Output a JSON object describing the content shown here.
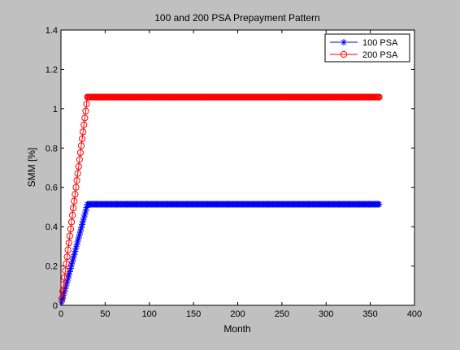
{
  "chart_data": {
    "type": "line",
    "title": "100 and 200 PSA Prepayment Pattern",
    "xlabel": "Month",
    "ylabel": "SMM [%]",
    "xlim": [
      0,
      400
    ],
    "ylim": [
      0,
      1.4
    ],
    "xticks": [
      0,
      50,
      100,
      150,
      200,
      250,
      300,
      350,
      400
    ],
    "yticks": [
      0,
      0.2,
      0.4,
      0.6,
      0.8,
      1,
      1.2,
      1.4
    ],
    "xtick_labels": [
      "0",
      "50",
      "100",
      "150",
      "200",
      "250",
      "300",
      "350",
      "400"
    ],
    "ytick_labels": [
      "0",
      "0.2",
      "0.4",
      "0.6",
      "0.8",
      "1",
      "1.2",
      "1.4"
    ],
    "grid": false,
    "legend_position": "top-right",
    "series": [
      {
        "name": "100 PSA",
        "color": "#0000ff",
        "marker": "star",
        "x_range": [
          1,
          360
        ],
        "ramp_end_month": 30,
        "plateau": 0.514
      },
      {
        "name": "200 PSA",
        "color": "#ff0000",
        "marker": "circle",
        "x_range": [
          1,
          360
        ],
        "ramp_end_month": 30,
        "plateau": 1.059
      }
    ]
  }
}
